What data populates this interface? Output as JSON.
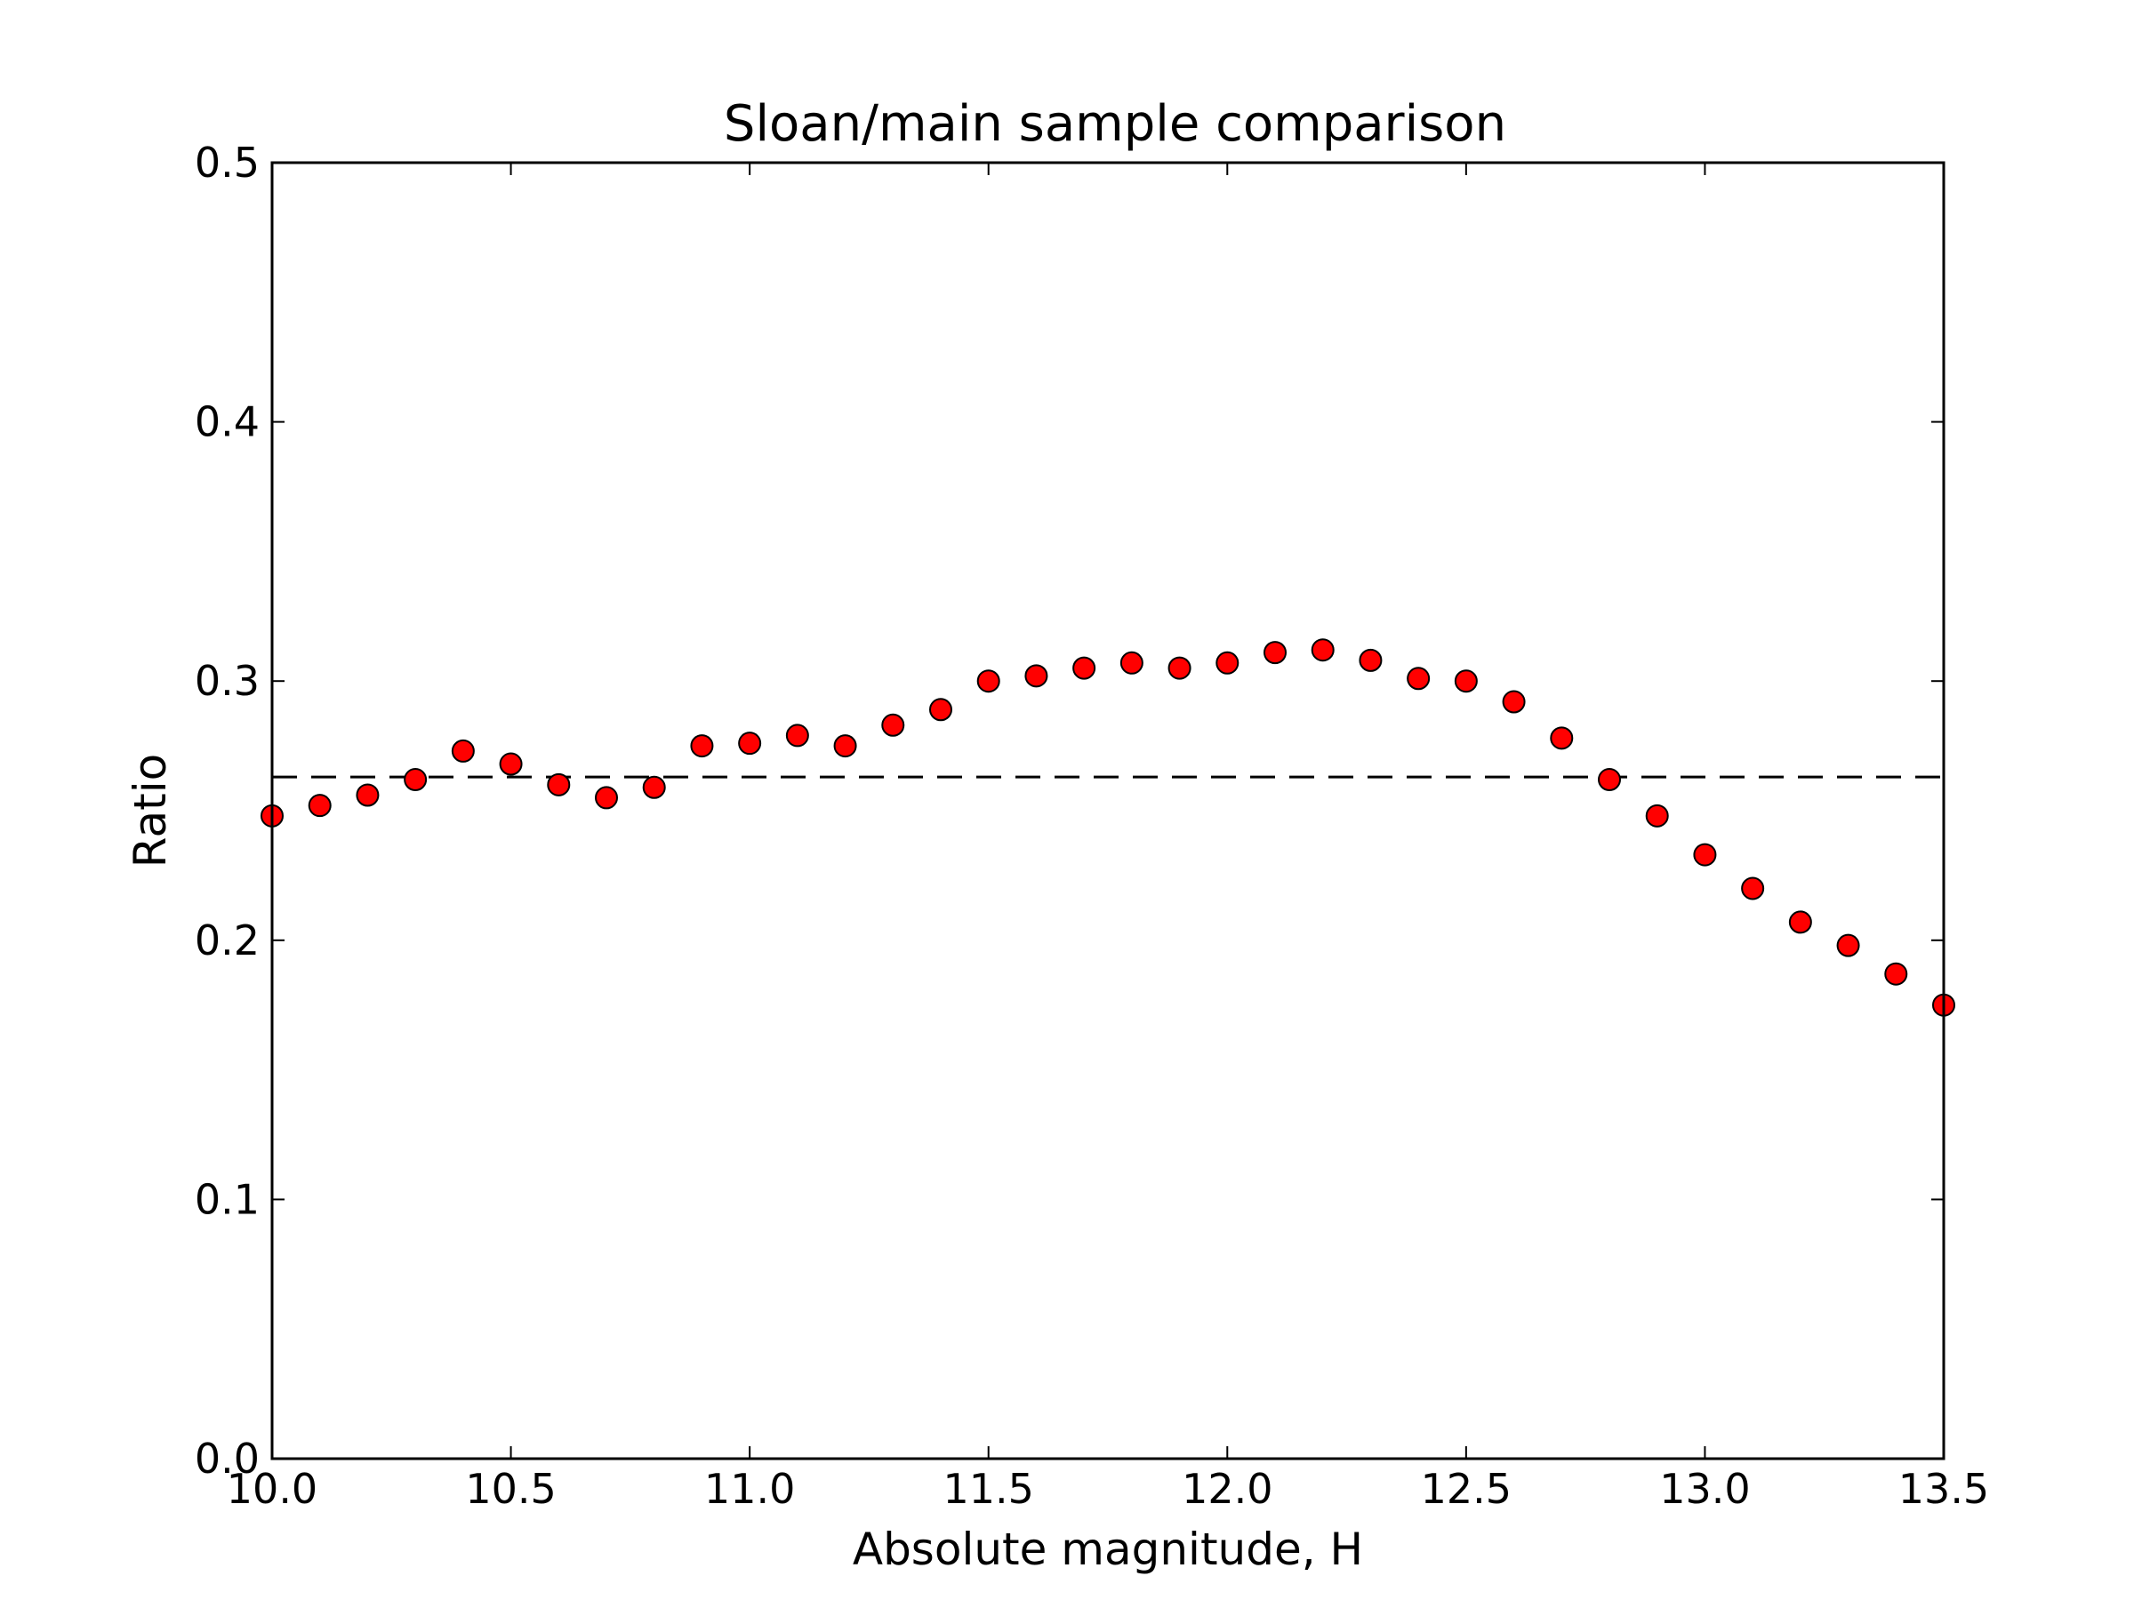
{
  "chart_data": {
    "type": "scatter",
    "title": "Sloan/main sample comparison",
    "xlabel": "Absolute magnitude, H",
    "ylabel": "Ratio",
    "xlim": [
      10.0,
      13.5
    ],
    "ylim": [
      0.0,
      0.5
    ],
    "xticks": [
      10.0,
      10.5,
      11.0,
      11.5,
      12.0,
      12.5,
      13.0,
      13.5
    ],
    "yticks": [
      0.0,
      0.1,
      0.2,
      0.3,
      0.4,
      0.5
    ],
    "xtick_labels": [
      "10.0",
      "10.5",
      "11.0",
      "11.5",
      "12.0",
      "12.5",
      "13.0",
      "13.5"
    ],
    "ytick_labels": [
      "0.0",
      "0.1",
      "0.2",
      "0.3",
      "0.4",
      "0.5"
    ],
    "grid": false,
    "series": [
      {
        "x": [
          10.0,
          10.1,
          10.2,
          10.3,
          10.4,
          10.5,
          10.6,
          10.7,
          10.8,
          10.9,
          11.0,
          11.1,
          11.2,
          11.3,
          11.4,
          11.5,
          11.6,
          11.7,
          11.8,
          11.9,
          12.0,
          12.1,
          12.2,
          12.3,
          12.4,
          12.5,
          12.6,
          12.7,
          12.8,
          12.9,
          13.0,
          13.1,
          13.2,
          13.3,
          13.4,
          13.5
        ],
        "y": [
          0.248,
          0.252,
          0.256,
          0.262,
          0.273,
          0.268,
          0.26,
          0.255,
          0.259,
          0.275,
          0.276,
          0.279,
          0.275,
          0.283,
          0.289,
          0.3,
          0.302,
          0.305,
          0.307,
          0.305,
          0.307,
          0.311,
          0.312,
          0.308,
          0.301,
          0.3,
          0.292,
          0.278,
          0.262,
          0.248,
          0.233,
          0.22,
          0.207,
          0.198,
          0.187,
          0.175
        ],
        "marker_color": "#ff0000",
        "marker_edge_color": "#000000"
      }
    ],
    "reference_line": {
      "y": 0.263,
      "style": "dashed",
      "color": "#000000"
    }
  }
}
